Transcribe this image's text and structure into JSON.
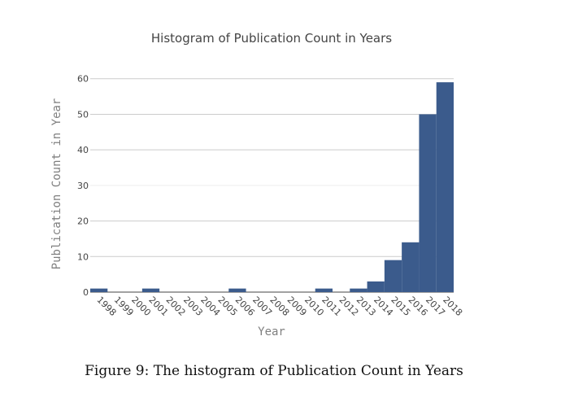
{
  "chart_data": {
    "type": "bar",
    "title": "Histogram of Publication Count in Years",
    "xlabel": "Year",
    "ylabel": "Publication Count in Year",
    "categories": [
      "1998",
      "1999",
      "2000",
      "2001",
      "2002",
      "2003",
      "2004",
      "2005",
      "2006",
      "2007",
      "2008",
      "2009",
      "2010",
      "2011",
      "2012",
      "2013",
      "2014",
      "2015",
      "2016",
      "2017",
      "2018"
    ],
    "values": [
      1,
      0,
      0,
      1,
      0,
      0,
      0,
      0,
      1,
      0,
      0,
      0,
      0,
      1,
      0,
      1,
      3,
      9,
      14,
      50,
      59
    ],
    "ylim": [
      0,
      62
    ],
    "yticks": [
      0,
      10,
      20,
      30,
      40,
      50,
      60
    ],
    "grid": true,
    "bar_color": "#3b5b8c",
    "grid_color": "#cccccc"
  },
  "caption": "Figure 9: The histogram of Publication Count in Years"
}
